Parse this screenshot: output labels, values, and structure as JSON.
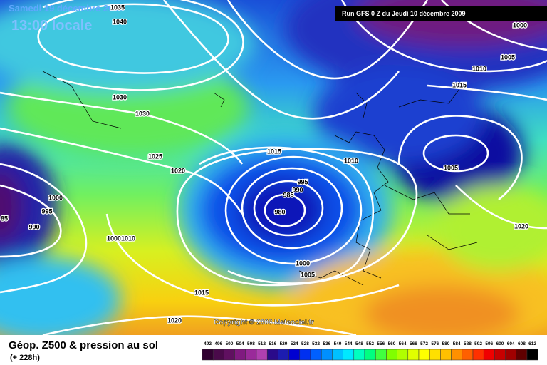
{
  "header": {
    "date": "Samedi 19 décembre 2009",
    "time": "13:00 locale",
    "run": "Run GFS 0 Z du Jeudi 10 décembre 2009"
  },
  "isobar_labels": [
    "1035",
    "1040",
    "1030",
    "1030",
    "1025",
    "1020",
    "1015",
    "1010",
    "1000",
    "1005",
    "1010",
    "1015",
    "1005",
    "1020",
    "1000",
    "995",
    "990",
    "85",
    "1000",
    "1010",
    "995",
    "990",
    "985",
    "980",
    "1000",
    "1005",
    "1015",
    "1020"
  ],
  "copyright": "Copyright © 2008 Meteociel.fr",
  "footer": {
    "title": "Géop. Z500 & pression au sol",
    "lead_time": "(+ 228h)"
  },
  "legend": {
    "labels": [
      "492",
      "496",
      "500",
      "504",
      "508",
      "512",
      "516",
      "520",
      "524",
      "528",
      "532",
      "536",
      "540",
      "544",
      "548",
      "552",
      "556",
      "560",
      "564",
      "568",
      "572",
      "576",
      "580",
      "584",
      "588",
      "592",
      "596",
      "600",
      "604",
      "608",
      "612"
    ],
    "colors": [
      "#300030",
      "#4a0a4a",
      "#601060",
      "#801a80",
      "#9a2a9a",
      "#b040b0",
      "#2a0a8a",
      "#1c1cb0",
      "#0000d0",
      "#0030f0",
      "#0060ff",
      "#0090ff",
      "#00c0ff",
      "#00e8ff",
      "#00ffc0",
      "#00ff80",
      "#40ff40",
      "#80ff00",
      "#b0ff00",
      "#e0ff00",
      "#ffff00",
      "#ffe000",
      "#ffc000",
      "#ff9000",
      "#ff6000",
      "#ff3000",
      "#f00000",
      "#c80000",
      "#a00000",
      "#600000",
      "#000000"
    ]
  }
}
